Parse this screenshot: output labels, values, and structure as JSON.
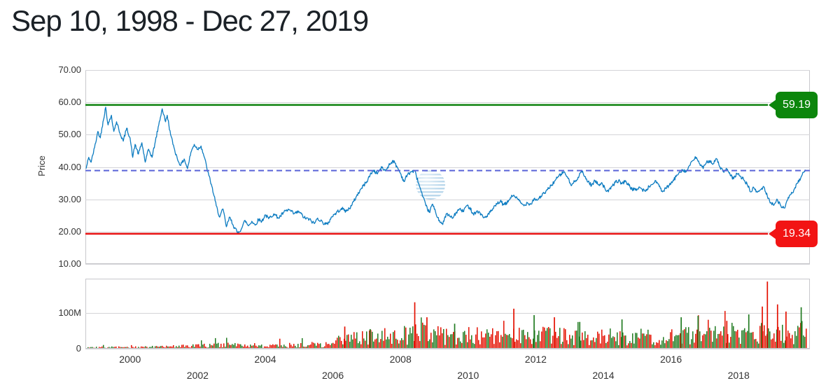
{
  "header": {
    "title": "Sep 10, 1998 - Dec 27, 2019"
  },
  "colors": {
    "price_line": "#0d7cc1",
    "last_price_dashed": "#5a64d8",
    "high_line": "#0b800b",
    "high_badge": "#0c860c",
    "low_line": "#e81212",
    "low_badge": "#f21414",
    "volume_up": "#217b21",
    "volume_down": "#e41000",
    "grid": "#d4d4d8",
    "border": "#c8c8cc",
    "axis_text": "#333333",
    "title_text": "#1b2127"
  },
  "chart_data": [
    {
      "type": "line",
      "name": "price",
      "title": "Sep 10, 1998 - Dec 27, 2019",
      "ylabel": "Price",
      "ylim": [
        10,
        70
      ],
      "grid": true,
      "y_ticks": [
        {
          "value": 70,
          "label": "70.00"
        },
        {
          "value": 60,
          "label": "60.00"
        },
        {
          "value": 50,
          "label": "50.00"
        },
        {
          "value": 40,
          "label": "40.00"
        },
        {
          "value": 30,
          "label": "30.00"
        },
        {
          "value": 20,
          "label": "20.00"
        },
        {
          "value": 10,
          "label": "10.00"
        }
      ],
      "x_axis": {
        "range_years": [
          1998.69,
          2019.99
        ],
        "ticks": [
          {
            "year": 2000,
            "row": 1
          },
          {
            "year": 2002,
            "row": 2
          },
          {
            "year": 2004,
            "row": 1
          },
          {
            "year": 2006,
            "row": 2
          },
          {
            "year": 2008,
            "row": 1
          },
          {
            "year": 2010,
            "row": 2
          },
          {
            "year": 2012,
            "row": 1
          },
          {
            "year": 2014,
            "row": 2
          },
          {
            "year": 2016,
            "row": 1
          },
          {
            "year": 2018,
            "row": 2
          }
        ]
      },
      "annotations": {
        "high": {
          "value": 59.19,
          "label": "59.19"
        },
        "low": {
          "value": 19.34,
          "label": "19.34"
        },
        "last": {
          "value": 38.9,
          "style": "dashed"
        }
      },
      "series": [
        {
          "name": "close",
          "points": [
            [
              1998.7,
              39.5
            ],
            [
              1998.78,
              43
            ],
            [
              1998.85,
              41.5
            ],
            [
              1998.95,
              46
            ],
            [
              1999.05,
              51
            ],
            [
              1999.12,
              49
            ],
            [
              1999.2,
              54
            ],
            [
              1999.28,
              58.5
            ],
            [
              1999.35,
              53
            ],
            [
              1999.45,
              56
            ],
            [
              1999.52,
              51
            ],
            [
              1999.6,
              54
            ],
            [
              1999.7,
              50.5
            ],
            [
              1999.8,
              48
            ],
            [
              1999.9,
              52
            ],
            [
              2000.0,
              49
            ],
            [
              2000.08,
              43
            ],
            [
              2000.15,
              47
            ],
            [
              2000.25,
              44
            ],
            [
              2000.35,
              47.5
            ],
            [
              2000.45,
              41.5
            ],
            [
              2000.55,
              45.5
            ],
            [
              2000.65,
              43
            ],
            [
              2000.75,
              48
            ],
            [
              2000.85,
              53
            ],
            [
              2000.95,
              58
            ],
            [
              2001.05,
              54
            ],
            [
              2001.1,
              56
            ],
            [
              2001.2,
              50
            ],
            [
              2001.3,
              46
            ],
            [
              2001.4,
              42.5
            ],
            [
              2001.5,
              40.5
            ],
            [
              2001.6,
              42.5
            ],
            [
              2001.7,
              39.5
            ],
            [
              2001.8,
              44.5
            ],
            [
              2001.9,
              47
            ],
            [
              2002.0,
              45.5
            ],
            [
              2002.1,
              46.5
            ],
            [
              2002.2,
              43
            ],
            [
              2002.3,
              38.5
            ],
            [
              2002.42,
              34
            ],
            [
              2002.55,
              28
            ],
            [
              2002.65,
              24.5
            ],
            [
              2002.75,
              27
            ],
            [
              2002.85,
              21.5
            ],
            [
              2002.95,
              24.5
            ],
            [
              2003.05,
              22
            ],
            [
              2003.18,
              19.6
            ],
            [
              2003.3,
              21
            ],
            [
              2003.4,
              23.5
            ],
            [
              2003.5,
              21.8
            ],
            [
              2003.6,
              23.2
            ],
            [
              2003.7,
              22
            ],
            [
              2003.8,
              23.8
            ],
            [
              2003.9,
              23.2
            ],
            [
              2004.0,
              25.2
            ],
            [
              2004.1,
              24
            ],
            [
              2004.25,
              25.5
            ],
            [
              2004.4,
              24.2
            ],
            [
              2004.55,
              26
            ],
            [
              2004.7,
              26.8
            ],
            [
              2004.85,
              25.5
            ],
            [
              2005.0,
              26.2
            ],
            [
              2005.15,
              24.3
            ],
            [
              2005.3,
              23.8
            ],
            [
              2005.45,
              22.5
            ],
            [
              2005.55,
              24.2
            ],
            [
              2005.7,
              22.8
            ],
            [
              2005.85,
              22.2
            ],
            [
              2005.95,
              24.5
            ],
            [
              2006.1,
              25.8
            ],
            [
              2006.25,
              27.2
            ],
            [
              2006.4,
              26.3
            ],
            [
              2006.55,
              28
            ],
            [
              2006.7,
              31
            ],
            [
              2006.85,
              33.5
            ],
            [
              2007.0,
              35.5
            ],
            [
              2007.1,
              37.5
            ],
            [
              2007.2,
              39
            ],
            [
              2007.3,
              38
            ],
            [
              2007.45,
              39.8
            ],
            [
              2007.55,
              38.8
            ],
            [
              2007.65,
              40.5
            ],
            [
              2007.78,
              42
            ],
            [
              2007.9,
              40
            ],
            [
              2008.0,
              38
            ],
            [
              2008.1,
              35.5
            ],
            [
              2008.2,
              37.5
            ],
            [
              2008.3,
              38.5
            ],
            [
              2008.42,
              38.8
            ],
            [
              2008.55,
              34.5
            ],
            [
              2008.65,
              31
            ],
            [
              2008.75,
              28
            ],
            [
              2008.85,
              26
            ],
            [
              2008.95,
              28.5
            ],
            [
              2009.05,
              25.5
            ],
            [
              2009.15,
              23.5
            ],
            [
              2009.25,
              22.2
            ],
            [
              2009.35,
              25.5
            ],
            [
              2009.45,
              24.8
            ],
            [
              2009.55,
              24.2
            ],
            [
              2009.65,
              26
            ],
            [
              2009.75,
              27
            ],
            [
              2009.85,
              26.2
            ],
            [
              2009.95,
              28
            ],
            [
              2010.05,
              27.5
            ],
            [
              2010.15,
              25.5
            ],
            [
              2010.25,
              26.2
            ],
            [
              2010.35,
              25.9
            ],
            [
              2010.45,
              24.3
            ],
            [
              2010.55,
              24.8
            ],
            [
              2010.65,
              26
            ],
            [
              2010.75,
              27.2
            ],
            [
              2010.85,
              28.5
            ],
            [
              2010.95,
              29.4
            ],
            [
              2011.05,
              28.3
            ],
            [
              2011.15,
              28.8
            ],
            [
              2011.25,
              30.5
            ],
            [
              2011.35,
              31.3
            ],
            [
              2011.45,
              30.2
            ],
            [
              2011.55,
              29
            ],
            [
              2011.65,
              28
            ],
            [
              2011.75,
              29
            ],
            [
              2011.85,
              28.5
            ],
            [
              2011.95,
              30.2
            ],
            [
              2012.05,
              29.8
            ],
            [
              2012.15,
              31
            ],
            [
              2012.25,
              31.8
            ],
            [
              2012.35,
              33
            ],
            [
              2012.45,
              34.2
            ],
            [
              2012.55,
              35.5
            ],
            [
              2012.65,
              36.8
            ],
            [
              2012.75,
              37.8
            ],
            [
              2012.85,
              38.5
            ],
            [
              2012.95,
              36.5
            ],
            [
              2013.05,
              34.2
            ],
            [
              2013.15,
              35.5
            ],
            [
              2013.25,
              36.8
            ],
            [
              2013.35,
              38.8
            ],
            [
              2013.45,
              37
            ],
            [
              2013.55,
              35.5
            ],
            [
              2013.65,
              34.3
            ],
            [
              2013.75,
              35.8
            ],
            [
              2013.85,
              34.5
            ],
            [
              2013.95,
              35.2
            ],
            [
              2014.05,
              33.2
            ],
            [
              2014.15,
              32.3
            ],
            [
              2014.25,
              34
            ],
            [
              2014.35,
              35.2
            ],
            [
              2014.45,
              35.8
            ],
            [
              2014.55,
              34.8
            ],
            [
              2014.65,
              35.8
            ],
            [
              2014.75,
              34.3
            ],
            [
              2014.85,
              33.2
            ],
            [
              2014.95,
              32.8
            ],
            [
              2015.05,
              33.8
            ],
            [
              2015.15,
              33
            ],
            [
              2015.25,
              32.5
            ],
            [
              2015.35,
              34
            ],
            [
              2015.45,
              34.6
            ],
            [
              2015.55,
              35.8
            ],
            [
              2015.65,
              34
            ],
            [
              2015.75,
              32.3
            ],
            [
              2015.85,
              33.3
            ],
            [
              2015.95,
              34.4
            ],
            [
              2016.05,
              35.5
            ],
            [
              2016.15,
              37
            ],
            [
              2016.25,
              38.5
            ],
            [
              2016.35,
              39.2
            ],
            [
              2016.45,
              38.5
            ],
            [
              2016.55,
              40.5
            ],
            [
              2016.65,
              42
            ],
            [
              2016.75,
              43
            ],
            [
              2016.85,
              41
            ],
            [
              2016.95,
              39.5
            ],
            [
              2017.05,
              41.5
            ],
            [
              2017.15,
              42
            ],
            [
              2017.25,
              41
            ],
            [
              2017.35,
              42.5
            ],
            [
              2017.45,
              40
            ],
            [
              2017.55,
              38.5
            ],
            [
              2017.65,
              39.3
            ],
            [
              2017.75,
              37.5
            ],
            [
              2017.85,
              36.3
            ],
            [
              2017.95,
              38
            ],
            [
              2018.05,
              37.2
            ],
            [
              2018.15,
              36
            ],
            [
              2018.25,
              34.8
            ],
            [
              2018.35,
              32.3
            ],
            [
              2018.45,
              33.5
            ],
            [
              2018.55,
              32.2
            ],
            [
              2018.65,
              33
            ],
            [
              2018.75,
              33.8
            ],
            [
              2018.85,
              31
            ],
            [
              2018.95,
              29
            ],
            [
              2019.05,
              28.3
            ],
            [
              2019.15,
              29.8
            ],
            [
              2019.25,
              28
            ],
            [
              2019.35,
              27.3
            ],
            [
              2019.45,
              29.8
            ],
            [
              2019.55,
              31.5
            ],
            [
              2019.65,
              33.2
            ],
            [
              2019.75,
              35
            ],
            [
              2019.85,
              37
            ],
            [
              2019.95,
              38.5
            ],
            [
              2019.99,
              38.9
            ]
          ]
        }
      ],
      "watermark": "att-globe-icon"
    },
    {
      "type": "bar",
      "name": "volume",
      "ylim_m": [
        0,
        196
      ],
      "y_ticks": [
        {
          "value_m": 100,
          "label": "100M"
        },
        {
          "value_m": 0,
          "label": "0"
        }
      ],
      "typical_volume_envelope_m": [
        [
          1998.7,
          3
        ],
        [
          2000,
          4
        ],
        [
          2001,
          5
        ],
        [
          2002,
          7
        ],
        [
          2002.6,
          10
        ],
        [
          2003,
          9
        ],
        [
          2004,
          8
        ],
        [
          2005,
          9
        ],
        [
          2005.9,
          12
        ],
        [
          2006.2,
          22
        ],
        [
          2007,
          28
        ],
        [
          2008,
          34
        ],
        [
          2008.8,
          40
        ],
        [
          2009,
          36
        ],
        [
          2010,
          32
        ],
        [
          2011,
          32
        ],
        [
          2012,
          34
        ],
        [
          2013,
          30
        ],
        [
          2014,
          29
        ],
        [
          2015,
          29
        ],
        [
          2016,
          31
        ],
        [
          2017,
          33
        ],
        [
          2018,
          40
        ],
        [
          2019,
          38
        ],
        [
          2019.99,
          42
        ]
      ],
      "volume_spikes_m": [
        [
          2006.35,
          62,
          "down"
        ],
        [
          2007.1,
          55,
          "up"
        ],
        [
          2008.42,
          130,
          "down"
        ],
        [
          2008.78,
          88,
          "down"
        ],
        [
          2009.6,
          70,
          "up"
        ],
        [
          2011.35,
          112,
          "down"
        ],
        [
          2011.95,
          94,
          "up"
        ],
        [
          2012.55,
          88,
          "down"
        ],
        [
          2013.3,
          75,
          "up"
        ],
        [
          2014.55,
          82,
          "up"
        ],
        [
          2016.3,
          88,
          "up"
        ],
        [
          2016.8,
          92,
          "up"
        ],
        [
          2017.65,
          78,
          "down"
        ],
        [
          2018.3,
          96,
          "up"
        ],
        [
          2018.7,
          118,
          "down"
        ],
        [
          2018.85,
          188,
          "down"
        ],
        [
          2019.15,
          124,
          "down"
        ],
        [
          2019.4,
          104,
          "down"
        ],
        [
          2019.85,
          116,
          "up"
        ]
      ]
    }
  ]
}
